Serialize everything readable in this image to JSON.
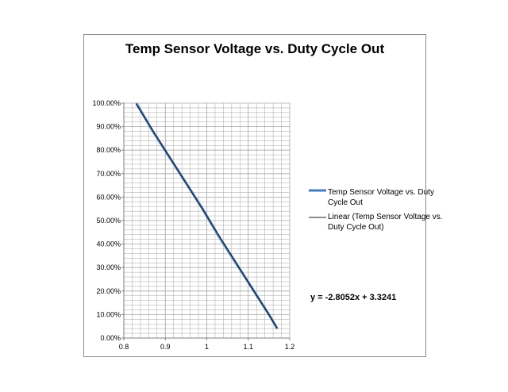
{
  "colors": {
    "series": "#4a7bb7",
    "trendline": "#1a1a1a",
    "grid": "#a6a6a6",
    "frame": "#8c8c8c"
  },
  "chart_data": {
    "type": "line",
    "title": "Temp Sensor Voltage vs. Duty Cycle Out",
    "xlabel": "",
    "ylabel": "",
    "xlim": [
      0.8,
      1.2
    ],
    "ylim": [
      0,
      1
    ],
    "x_ticks": [
      "0.8",
      "0.9",
      "1",
      "1.1",
      "1.2"
    ],
    "y_ticks": [
      "0.00%",
      "10.00%",
      "20.00%",
      "30.00%",
      "40.00%",
      "50.00%",
      "60.00%",
      "70.00%",
      "80.00%",
      "90.00%",
      "100.00%"
    ],
    "grid": true,
    "legend_position": "right",
    "series": [
      {
        "name": "Temp Sensor Voltage vs. Duty Cycle Out",
        "x": [
          0.83,
          0.87,
          0.91,
          0.95,
          0.99,
          1.03,
          1.07,
          1.11,
          1.15,
          1.17
        ],
        "y": [
          1.0,
          0.88,
          0.77,
          0.66,
          0.55,
          0.43,
          0.32,
          0.21,
          0.1,
          0.04
        ]
      }
    ],
    "trendline": {
      "name": "Linear (Temp Sensor Voltage vs. Duty Cycle Out)",
      "slope": -2.8052,
      "intercept": 3.3241,
      "x_range": [
        0.83,
        1.17
      ]
    },
    "equation": "y = -2.8052x + 3.3241"
  }
}
